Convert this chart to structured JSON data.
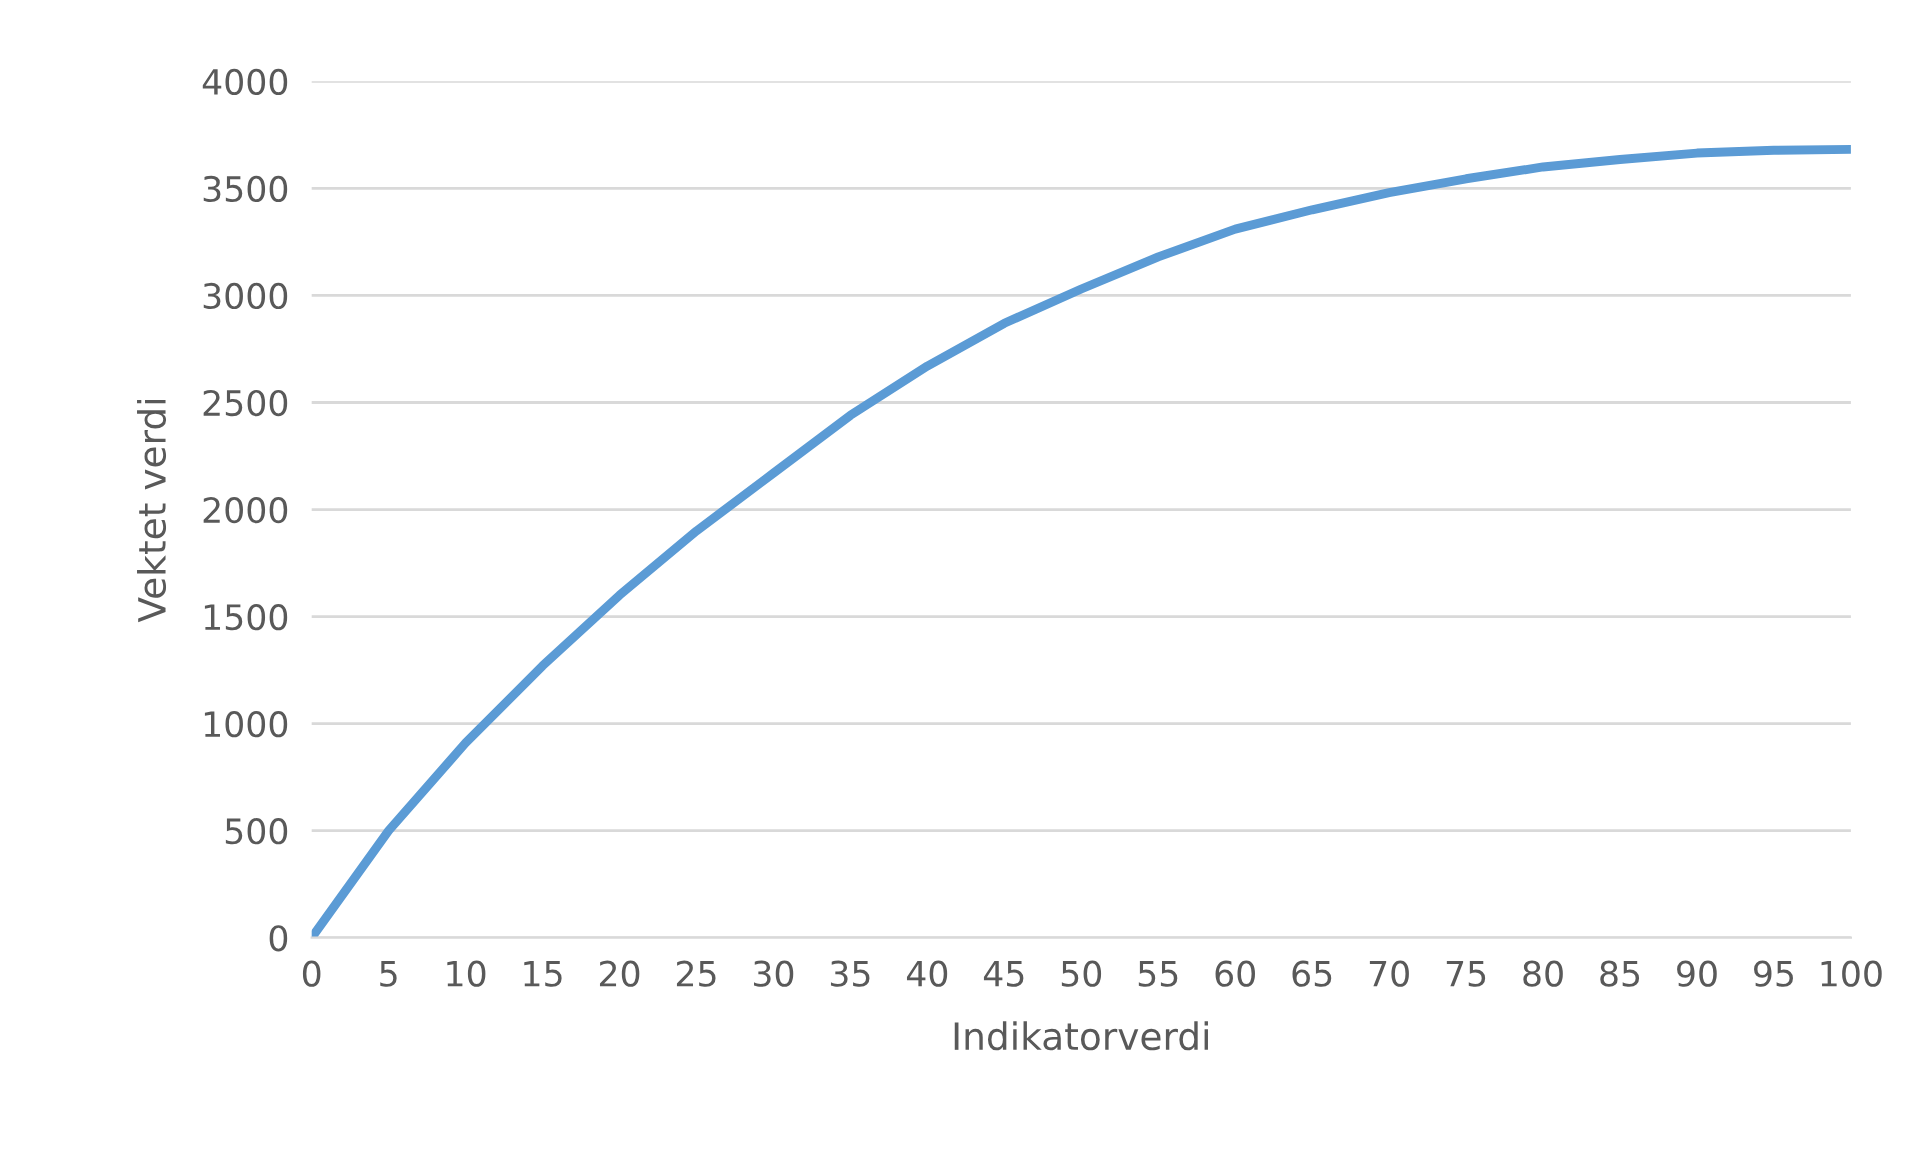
{
  "chart_data": {
    "type": "line",
    "xlabel": "Indikatorverdi",
    "ylabel": "Vektet verdi",
    "x": [
      0,
      5,
      10,
      15,
      20,
      25,
      30,
      35,
      40,
      45,
      50,
      55,
      60,
      65,
      70,
      75,
      80,
      85,
      90,
      95,
      100
    ],
    "series": [
      {
        "color": "#5b9bd5",
        "values": [
          0,
          500,
          910,
          1270,
          1600,
          1900,
          2170,
          2440,
          2670,
          2870,
          3030,
          3180,
          3310,
          3400,
          3480,
          3545,
          3600,
          3635,
          3665,
          3678,
          3682
        ]
      }
    ],
    "xlim": [
      0,
      100
    ],
    "xticks": [
      0,
      5,
      10,
      15,
      20,
      25,
      30,
      35,
      40,
      45,
      50,
      55,
      60,
      65,
      70,
      75,
      80,
      85,
      90,
      95,
      100
    ],
    "ylim": [
      0,
      4000
    ],
    "yticks": [
      0,
      500,
      1000,
      1500,
      2000,
      2500,
      3000,
      3500,
      4000
    ],
    "grid": "y",
    "marker": "none",
    "line_style": "solid"
  }
}
